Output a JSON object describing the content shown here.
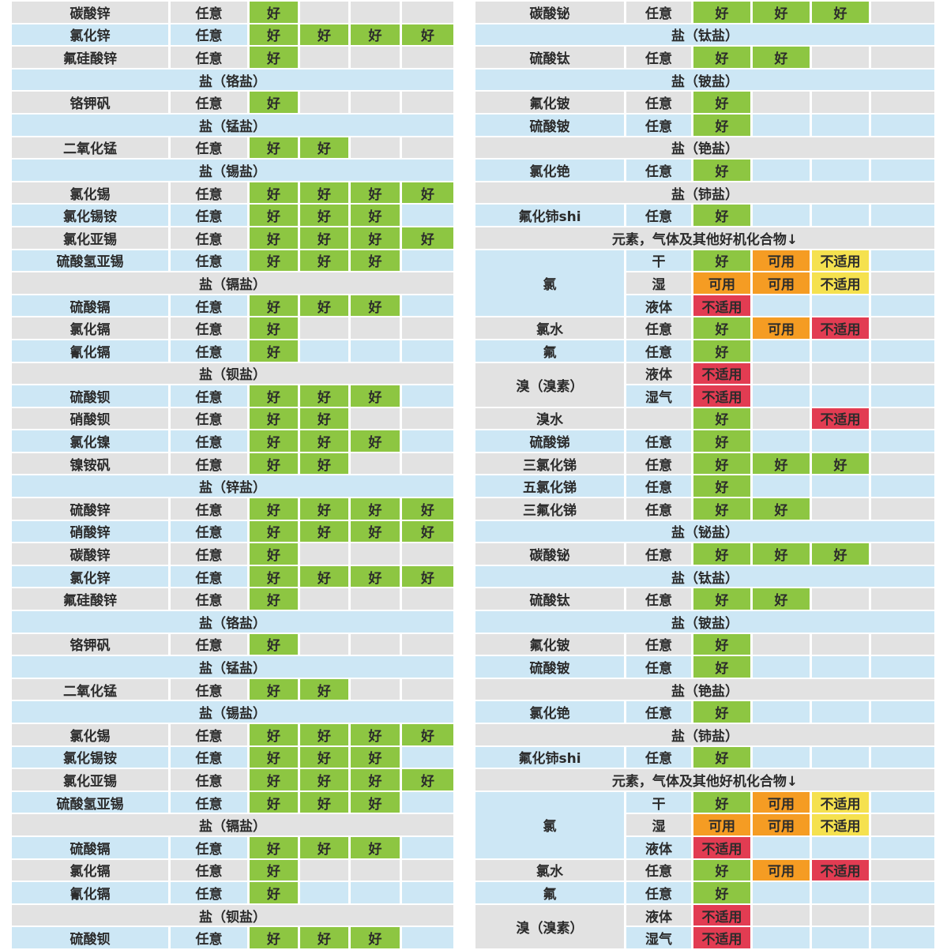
{
  "colors": {
    "stripe_gray": "#e2e2e2",
    "stripe_blue": "#cde7f5",
    "good_green": "#8dc642",
    "usable_orange": "#f59c23",
    "na_yellow": "#f5e14f",
    "na_red": "#e23c52",
    "text": "#2b2b2b",
    "background": "#ffffff"
  },
  "rating_labels": {
    "good": "好",
    "usable": "可用",
    "na-yellow": "不适用",
    "na-red": "不适用"
  },
  "left_table": {
    "rows": [
      {
        "type": "item",
        "name": "碳酸锌",
        "condition": "任意",
        "ratings": [
          "good",
          null,
          null,
          null
        ]
      },
      {
        "type": "item",
        "name": "氯化锌",
        "condition": "任意",
        "ratings": [
          "good",
          "good",
          "good",
          "good"
        ]
      },
      {
        "type": "item",
        "name": "氟硅酸锌",
        "condition": "任意",
        "ratings": [
          "good",
          null,
          null,
          null
        ]
      },
      {
        "type": "section",
        "label": "盐（铬盐）"
      },
      {
        "type": "item",
        "name": "铬钾矾",
        "condition": "任意",
        "ratings": [
          "good",
          null,
          null,
          null
        ]
      },
      {
        "type": "section",
        "label": "盐（锰盐）"
      },
      {
        "type": "item",
        "name": "二氧化锰",
        "condition": "任意",
        "ratings": [
          "good",
          "good",
          null,
          null
        ]
      },
      {
        "type": "section",
        "label": "盐（锡盐）"
      },
      {
        "type": "item",
        "name": "氯化锡",
        "condition": "任意",
        "ratings": [
          "good",
          "good",
          "good",
          "good"
        ]
      },
      {
        "type": "item",
        "name": "氯化锡铵",
        "condition": "任意",
        "ratings": [
          "good",
          "good",
          "good",
          null
        ]
      },
      {
        "type": "item",
        "name": "氯化亚锡",
        "condition": "任意",
        "ratings": [
          "good",
          "good",
          "good",
          "good"
        ]
      },
      {
        "type": "item",
        "name": "硫酸氢亚锡",
        "condition": "任意",
        "ratings": [
          "good",
          "good",
          "good",
          null
        ]
      },
      {
        "type": "section",
        "label": "盐（镉盐）"
      },
      {
        "type": "item",
        "name": "硫酸镉",
        "condition": "任意",
        "ratings": [
          "good",
          "good",
          "good",
          null
        ]
      },
      {
        "type": "item",
        "name": "氯化镉",
        "condition": "任意",
        "ratings": [
          "good",
          null,
          null,
          null
        ]
      },
      {
        "type": "item",
        "name": "氰化镉",
        "condition": "任意",
        "ratings": [
          "good",
          null,
          null,
          null
        ]
      },
      {
        "type": "section",
        "label": "盐（钡盐）"
      },
      {
        "type": "item",
        "name": "硫酸钡",
        "condition": "任意",
        "ratings": [
          "good",
          "good",
          "good",
          null
        ]
      },
      {
        "type": "item",
        "name": "硝酸钡",
        "condition": "任意",
        "ratings": [
          "good",
          "good",
          null,
          null
        ]
      },
      {
        "type": "item",
        "name": "氯化镍",
        "condition": "任意",
        "ratings": [
          "good",
          "good",
          "good",
          null
        ]
      },
      {
        "type": "item",
        "name": "镍铵矾",
        "condition": "任意",
        "ratings": [
          "good",
          "good",
          null,
          null
        ]
      },
      {
        "type": "section",
        "label": "盐（锌盐）"
      },
      {
        "type": "item",
        "name": "硫酸锌",
        "condition": "任意",
        "ratings": [
          "good",
          "good",
          "good",
          "good"
        ]
      },
      {
        "type": "item",
        "name": "硝酸锌",
        "condition": "任意",
        "ratings": [
          "good",
          "good",
          "good",
          "good"
        ]
      },
      {
        "type": "item",
        "name": "碳酸锌",
        "condition": "任意",
        "ratings": [
          "good",
          null,
          null,
          null
        ]
      },
      {
        "type": "item",
        "name": "氯化锌",
        "condition": "任意",
        "ratings": [
          "good",
          "good",
          "good",
          "good"
        ]
      },
      {
        "type": "item",
        "name": "氟硅酸锌",
        "condition": "任意",
        "ratings": [
          "good",
          null,
          null,
          null
        ]
      },
      {
        "type": "section",
        "label": "盐（铬盐）"
      },
      {
        "type": "item",
        "name": "铬钾矾",
        "condition": "任意",
        "ratings": [
          "good",
          null,
          null,
          null
        ]
      },
      {
        "type": "section",
        "label": "盐（锰盐）"
      },
      {
        "type": "item",
        "name": "二氧化锰",
        "condition": "任意",
        "ratings": [
          "good",
          "good",
          null,
          null
        ]
      },
      {
        "type": "section",
        "label": "盐（锡盐）"
      },
      {
        "type": "item",
        "name": "氯化锡",
        "condition": "任意",
        "ratings": [
          "good",
          "good",
          "good",
          "good"
        ]
      },
      {
        "type": "item",
        "name": "氯化锡铵",
        "condition": "任意",
        "ratings": [
          "good",
          "good",
          "good",
          null
        ]
      },
      {
        "type": "item",
        "name": "氯化亚锡",
        "condition": "任意",
        "ratings": [
          "good",
          "good",
          "good",
          "good"
        ]
      },
      {
        "type": "item",
        "name": "硫酸氢亚锡",
        "condition": "任意",
        "ratings": [
          "good",
          "good",
          "good",
          null
        ]
      },
      {
        "type": "section",
        "label": "盐（镉盐）"
      },
      {
        "type": "item",
        "name": "硫酸镉",
        "condition": "任意",
        "ratings": [
          "good",
          "good",
          "good",
          null
        ]
      },
      {
        "type": "item",
        "name": "氯化镉",
        "condition": "任意",
        "ratings": [
          "good",
          null,
          null,
          null
        ]
      },
      {
        "type": "item",
        "name": "氰化镉",
        "condition": "任意",
        "ratings": [
          "good",
          null,
          null,
          null
        ]
      },
      {
        "type": "section",
        "label": "盐（钡盐）"
      },
      {
        "type": "item",
        "name": "硫酸钡",
        "condition": "任意",
        "ratings": [
          "good",
          "good",
          "good",
          null
        ]
      }
    ]
  },
  "right_table": {
    "rows": [
      {
        "type": "item",
        "name": "碳酸铋",
        "condition": "任意",
        "ratings": [
          "good",
          "good",
          "good",
          null
        ]
      },
      {
        "type": "section",
        "label": "盐（钛盐）"
      },
      {
        "type": "item",
        "name": "硫酸钛",
        "condition": "任意",
        "ratings": [
          "good",
          "good",
          null,
          null
        ]
      },
      {
        "type": "section",
        "label": "盐（铍盐）"
      },
      {
        "type": "item",
        "name": "氟化铍",
        "condition": "任意",
        "ratings": [
          "good",
          null,
          null,
          null
        ]
      },
      {
        "type": "item",
        "name": "硫酸铍",
        "condition": "任意",
        "ratings": [
          "good",
          null,
          null,
          null
        ]
      },
      {
        "type": "section",
        "label": "盐（铯盐）"
      },
      {
        "type": "item",
        "name": "氯化铯",
        "condition": "任意",
        "ratings": [
          "good",
          null,
          null,
          null
        ]
      },
      {
        "type": "section",
        "label": "盐（铈盐）"
      },
      {
        "type": "item",
        "name": "氟化铈shi",
        "condition": "任意",
        "ratings": [
          "good",
          null,
          null,
          null
        ]
      },
      {
        "type": "section",
        "label": "元素，气体及其他好机化合物↓"
      },
      {
        "type": "group",
        "name": "氯",
        "subrows": [
          {
            "condition": "干",
            "ratings": [
              "good",
              "usable",
              "na-yellow",
              null
            ]
          },
          {
            "condition": "湿",
            "ratings": [
              "usable",
              "usable",
              "na-yellow",
              null
            ]
          },
          {
            "condition": "液体",
            "ratings": [
              "na-red",
              null,
              null,
              null
            ]
          }
        ]
      },
      {
        "type": "item",
        "name": "氯水",
        "condition": "任意",
        "ratings": [
          "good",
          "usable",
          "na-red",
          null
        ]
      },
      {
        "type": "item",
        "name": "氟",
        "condition": "任意",
        "ratings": [
          "good",
          null,
          null,
          null
        ]
      },
      {
        "type": "group",
        "name": "溴（溴素）",
        "subrows": [
          {
            "condition": "液体",
            "ratings": [
              "na-red",
              null,
              null,
              null
            ]
          },
          {
            "condition": "湿气",
            "ratings": [
              "na-red",
              null,
              null,
              null
            ]
          }
        ]
      },
      {
        "type": "item",
        "name": "溴水",
        "condition": "",
        "ratings": [
          "good",
          null,
          "na-red",
          null
        ]
      },
      {
        "type": "item",
        "name": "硫酸锑",
        "condition": "任意",
        "ratings": [
          "good",
          null,
          null,
          null
        ]
      },
      {
        "type": "item",
        "name": "三氯化锑",
        "condition": "任意",
        "ratings": [
          "good",
          "good",
          "good",
          null
        ]
      },
      {
        "type": "item",
        "name": "五氯化锑",
        "condition": "任意",
        "ratings": [
          "good",
          null,
          null,
          null
        ]
      },
      {
        "type": "item",
        "name": "三氟化锑",
        "condition": "任意",
        "ratings": [
          "good",
          "good",
          null,
          null
        ]
      },
      {
        "type": "section",
        "label": "盐（铋盐）"
      },
      {
        "type": "item",
        "name": "碳酸铋",
        "condition": "任意",
        "ratings": [
          "good",
          "good",
          "good",
          null
        ]
      },
      {
        "type": "section",
        "label": "盐（钛盐）"
      },
      {
        "type": "item",
        "name": "硫酸钛",
        "condition": "任意",
        "ratings": [
          "good",
          "good",
          null,
          null
        ]
      },
      {
        "type": "section",
        "label": "盐（铍盐）"
      },
      {
        "type": "item",
        "name": "氟化铍",
        "condition": "任意",
        "ratings": [
          "good",
          null,
          null,
          null
        ]
      },
      {
        "type": "item",
        "name": "硫酸铍",
        "condition": "任意",
        "ratings": [
          "good",
          null,
          null,
          null
        ]
      },
      {
        "type": "section",
        "label": "盐（铯盐）"
      },
      {
        "type": "item",
        "name": "氯化铯",
        "condition": "任意",
        "ratings": [
          "good",
          null,
          null,
          null
        ]
      },
      {
        "type": "section",
        "label": "盐（铈盐）"
      },
      {
        "type": "item",
        "name": "氟化铈shi",
        "condition": "任意",
        "ratings": [
          "good",
          null,
          null,
          null
        ]
      },
      {
        "type": "section",
        "label": "元素，气体及其他好机化合物↓"
      },
      {
        "type": "group",
        "name": "氯",
        "subrows": [
          {
            "condition": "干",
            "ratings": [
              "good",
              "usable",
              "na-yellow",
              null
            ]
          },
          {
            "condition": "湿",
            "ratings": [
              "usable",
              "usable",
              "na-yellow",
              null
            ]
          },
          {
            "condition": "液体",
            "ratings": [
              "na-red",
              null,
              null,
              null
            ]
          }
        ]
      },
      {
        "type": "item",
        "name": "氯水",
        "condition": "任意",
        "ratings": [
          "good",
          "usable",
          "na-red",
          null
        ]
      },
      {
        "type": "item",
        "name": "氟",
        "condition": "任意",
        "ratings": [
          "good",
          null,
          null,
          null
        ]
      },
      {
        "type": "group",
        "name": "溴（溴素）",
        "subrows": [
          {
            "condition": "液体",
            "ratings": [
              "na-red",
              null,
              null,
              null
            ]
          },
          {
            "condition": "湿气",
            "ratings": [
              "na-red",
              null,
              null,
              null
            ]
          }
        ]
      }
    ]
  }
}
